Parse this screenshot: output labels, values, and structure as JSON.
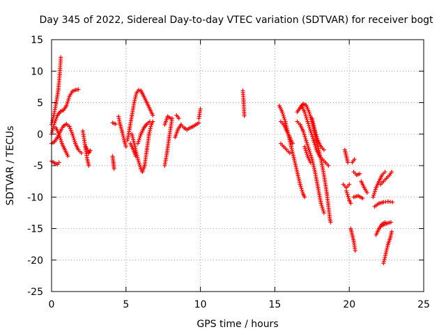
{
  "chart_data": {
    "type": "scatter",
    "title": "Day 345 of 2022, Sidereal Day-to-day VTEC variation (SDTVAR) for receiver bogt",
    "xlabel": "GPS time / hours",
    "ylabel": "SDTVAR / TECUs",
    "xlim": [
      0,
      25
    ],
    "ylim": [
      -25,
      15
    ],
    "xticks": [
      0,
      5,
      10,
      15,
      20,
      25
    ],
    "yticks": [
      -25,
      -20,
      -15,
      -10,
      -5,
      0,
      5,
      10,
      15
    ],
    "grid": true,
    "marker": "+",
    "color": "#ff0000",
    "segments": [
      [
        [
          0.0,
          1.5
        ],
        [
          0.15,
          3.0
        ],
        [
          0.3,
          4.8
        ],
        [
          0.45,
          7.0
        ],
        [
          0.55,
          9.5
        ],
        [
          0.62,
          12.2
        ]
      ],
      [
        [
          0.0,
          0.0
        ],
        [
          0.2,
          1.8
        ],
        [
          0.4,
          3.0
        ],
        [
          0.6,
          3.6
        ],
        [
          0.8,
          3.8
        ],
        [
          1.0,
          4.5
        ],
        [
          1.2,
          6.0
        ],
        [
          1.4,
          6.8
        ],
        [
          1.6,
          7.0
        ],
        [
          1.8,
          7.1
        ]
      ],
      [
        [
          0.0,
          -1.5
        ],
        [
          0.2,
          -1.2
        ],
        [
          0.4,
          -0.5
        ],
        [
          0.6,
          0.5
        ],
        [
          0.8,
          1.3
        ],
        [
          1.0,
          1.6
        ],
        [
          1.2,
          1.2
        ],
        [
          1.4,
          0.0
        ],
        [
          1.6,
          -1.5
        ],
        [
          1.8,
          -2.5
        ],
        [
          2.0,
          -3.0
        ]
      ],
      [
        [
          0.3,
          1.0
        ],
        [
          0.5,
          0.0
        ],
        [
          0.7,
          -1.5
        ],
        [
          0.9,
          -2.5
        ],
        [
          1.1,
          -3.5
        ]
      ],
      [
        [
          0.0,
          -4.3
        ],
        [
          0.2,
          -4.6
        ],
        [
          0.4,
          -4.8
        ],
        [
          0.5,
          -4.5
        ]
      ],
      [
        [
          2.1,
          0.5
        ],
        [
          2.2,
          -1.0
        ],
        [
          2.3,
          -2.5
        ],
        [
          2.4,
          -4.0
        ],
        [
          2.5,
          -5.0
        ]
      ],
      [
        [
          2.3,
          -2.0
        ],
        [
          2.5,
          -3.0
        ],
        [
          2.6,
          -2.6
        ]
      ],
      [
        [
          4.1,
          -3.5
        ],
        [
          4.15,
          -4.5
        ],
        [
          4.2,
          -5.5
        ]
      ],
      [
        [
          4.1,
          1.8
        ],
        [
          4.3,
          1.6
        ]
      ],
      [
        [
          4.5,
          2.8
        ],
        [
          4.6,
          1.6
        ],
        [
          4.75,
          0.3
        ],
        [
          4.9,
          -1.2
        ],
        [
          5.0,
          -2.0
        ]
      ],
      [
        [
          5.3,
          -1.5
        ],
        [
          5.5,
          -2.5
        ],
        [
          5.65,
          -3.5
        ]
      ],
      [
        [
          5.1,
          -1.0
        ],
        [
          5.25,
          1.0
        ],
        [
          5.4,
          3.0
        ],
        [
          5.55,
          5.0
        ],
        [
          5.7,
          6.5
        ],
        [
          5.85,
          7.0
        ],
        [
          6.0,
          6.9
        ],
        [
          6.2,
          6.0
        ],
        [
          6.4,
          5.0
        ],
        [
          6.6,
          4.0
        ],
        [
          6.8,
          3.0
        ]
      ],
      [
        [
          5.4,
          0.0
        ],
        [
          5.6,
          -2.0
        ],
        [
          5.8,
          -4.0
        ],
        [
          6.0,
          -5.5
        ],
        [
          6.1,
          -6.0
        ],
        [
          6.25,
          -5.0
        ],
        [
          6.4,
          -2.5
        ],
        [
          6.55,
          0.0
        ],
        [
          6.7,
          1.5
        ],
        [
          6.8,
          2.0
        ]
      ],
      [
        [
          5.8,
          -1.5
        ],
        [
          6.0,
          0.0
        ],
        [
          6.2,
          1.0
        ],
        [
          6.4,
          1.6
        ],
        [
          6.6,
          2.0
        ]
      ],
      [
        [
          7.6,
          -5.0
        ],
        [
          7.75,
          -3.0
        ],
        [
          7.9,
          -0.5
        ],
        [
          8.0,
          1.0
        ],
        [
          8.1,
          2.5
        ]
      ],
      [
        [
          7.6,
          1.5
        ],
        [
          7.8,
          2.8
        ],
        [
          8.0,
          2.5
        ]
      ],
      [
        [
          8.3,
          -0.5
        ],
        [
          8.5,
          0.8
        ],
        [
          8.7,
          1.5
        ],
        [
          8.9,
          1.0
        ],
        [
          9.1,
          0.7
        ],
        [
          9.3,
          1.0
        ],
        [
          9.5,
          1.2
        ],
        [
          9.7,
          1.5
        ],
        [
          9.9,
          1.8
        ]
      ],
      [
        [
          8.4,
          3.0
        ],
        [
          8.55,
          2.5
        ]
      ],
      [
        [
          9.9,
          2.5
        ],
        [
          10.0,
          4.0
        ]
      ],
      [
        [
          12.85,
          6.9
        ],
        [
          12.9,
          5.4
        ],
        [
          12.95,
          2.9
        ]
      ],
      [
        [
          15.3,
          4.5
        ],
        [
          15.5,
          3.5
        ],
        [
          15.7,
          2.0
        ],
        [
          15.9,
          0.0
        ],
        [
          16.1,
          -2.0
        ],
        [
          16.3,
          -4.0
        ],
        [
          16.5,
          -6.0
        ],
        [
          16.7,
          -8.0
        ],
        [
          16.9,
          -9.5
        ],
        [
          17.0,
          -10.0
        ]
      ],
      [
        [
          15.4,
          2.0
        ],
        [
          15.6,
          1.5
        ],
        [
          15.8,
          0.5
        ],
        [
          16.0,
          -0.5
        ],
        [
          16.2,
          -1.5
        ]
      ],
      [
        [
          15.4,
          -1.5
        ],
        [
          15.6,
          -2.0
        ],
        [
          15.8,
          -2.5
        ],
        [
          16.0,
          -3.0
        ]
      ],
      [
        [
          16.5,
          3.5
        ],
        [
          16.7,
          4.2
        ],
        [
          16.9,
          4.8
        ],
        [
          17.1,
          4.6
        ],
        [
          17.3,
          3.5
        ],
        [
          17.5,
          2.0
        ],
        [
          17.7,
          0.0
        ],
        [
          17.9,
          -2.0
        ],
        [
          18.1,
          -4.0
        ],
        [
          18.3,
          -6.5
        ],
        [
          18.5,
          -9.5
        ],
        [
          18.7,
          -13.5
        ],
        [
          18.75,
          -14.0
        ]
      ],
      [
        [
          16.8,
          4.5
        ],
        [
          17.0,
          3.5
        ],
        [
          17.2,
          2.0
        ],
        [
          17.4,
          0.5
        ],
        [
          17.6,
          -1.0
        ],
        [
          17.8,
          -2.5
        ],
        [
          18.0,
          -3.5
        ],
        [
          18.2,
          -4.0
        ],
        [
          18.4,
          -4.5
        ],
        [
          18.6,
          -5.0
        ]
      ],
      [
        [
          16.5,
          2.0
        ],
        [
          16.7,
          1.5
        ],
        [
          16.9,
          0.5
        ],
        [
          17.1,
          -1.0
        ],
        [
          17.3,
          -2.5
        ],
        [
          17.5,
          -4.0
        ],
        [
          17.7,
          -6.0
        ],
        [
          17.9,
          -8.5
        ],
        [
          18.1,
          -11.0
        ],
        [
          18.3,
          -12.5
        ]
      ],
      [
        [
          17.5,
          2.5
        ],
        [
          17.7,
          0.5
        ],
        [
          17.9,
          -1.0
        ],
        [
          18.1,
          -2.0
        ],
        [
          18.3,
          -2.5
        ]
      ],
      [
        [
          17.0,
          -2.0
        ],
        [
          17.2,
          -3.5
        ],
        [
          17.4,
          -4.5
        ]
      ],
      [
        [
          19.7,
          -2.5
        ],
        [
          19.8,
          -3.5
        ],
        [
          19.9,
          -4.5
        ]
      ],
      [
        [
          19.6,
          -8.0
        ],
        [
          19.8,
          -8.5
        ],
        [
          20.0,
          -8.0
        ]
      ],
      [
        [
          19.8,
          -9.0
        ],
        [
          20.0,
          -10.5
        ],
        [
          20.1,
          -11.0
        ]
      ],
      [
        [
          20.2,
          -4.5
        ],
        [
          20.35,
          -4.0
        ]
      ],
      [
        [
          20.3,
          -6.0
        ],
        [
          20.5,
          -6.5
        ],
        [
          20.7,
          -6.3
        ]
      ],
      [
        [
          20.3,
          -10.0
        ],
        [
          20.6,
          -9.8
        ],
        [
          20.9,
          -10.2
        ]
      ],
      [
        [
          20.1,
          -15.0
        ],
        [
          20.2,
          -16.0
        ],
        [
          20.3,
          -17.0
        ],
        [
          20.4,
          -18.5
        ]
      ],
      [
        [
          20.8,
          -7.5
        ],
        [
          21.0,
          -8.5
        ],
        [
          21.2,
          -9.3
        ]
      ],
      [
        [
          21.6,
          -10.0
        ],
        [
          21.8,
          -8.5
        ],
        [
          22.0,
          -7.5
        ],
        [
          22.2,
          -6.5
        ],
        [
          22.4,
          -6.0
        ]
      ],
      [
        [
          21.7,
          -11.5
        ],
        [
          22.0,
          -11.0
        ],
        [
          22.3,
          -10.8
        ],
        [
          22.6,
          -10.7
        ],
        [
          22.9,
          -10.8
        ]
      ],
      [
        [
          22.1,
          -8.0
        ],
        [
          22.3,
          -7.5
        ],
        [
          22.5,
          -7.0
        ],
        [
          22.7,
          -6.5
        ],
        [
          22.85,
          -6.0
        ]
      ],
      [
        [
          21.8,
          -16.0
        ],
        [
          22.0,
          -15.0
        ],
        [
          22.2,
          -14.5
        ],
        [
          22.5,
          -14.2
        ],
        [
          22.8,
          -14.0
        ]
      ],
      [
        [
          22.3,
          -20.5
        ],
        [
          22.45,
          -19.0
        ],
        [
          22.6,
          -17.5
        ],
        [
          22.75,
          -16.5
        ],
        [
          22.85,
          -15.5
        ]
      ],
      [
        [
          22.0,
          -15.0
        ],
        [
          22.2,
          -14.3
        ],
        [
          22.4,
          -14.0
        ]
      ]
    ]
  }
}
